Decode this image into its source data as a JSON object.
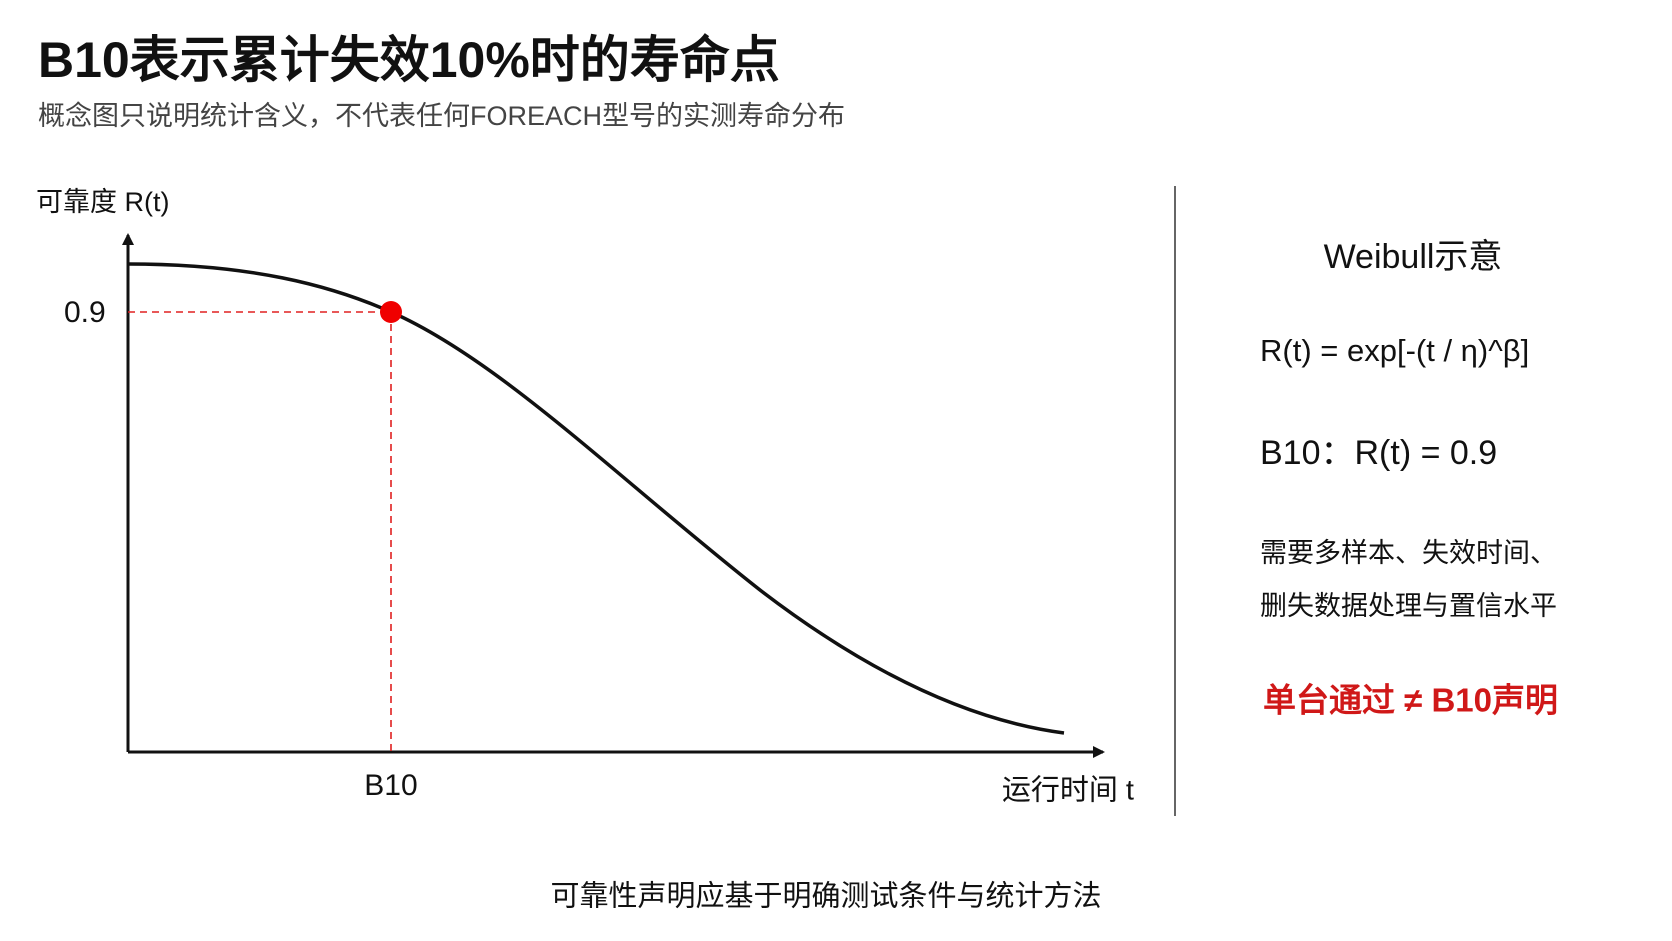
{
  "header": {
    "title": "B10表示累计失效10%时的寿命点",
    "subtitle": "概念图只说明统计含义，不代表任何FOREACH型号的实测寿命分布"
  },
  "diagram": {
    "y_axis_label": "可靠度 R(t)",
    "x_axis_label": "运行时间 t",
    "point_y_label": "0.9",
    "point_x_label": "B10"
  },
  "panel": {
    "title": "Weibull示意",
    "formula": "R(t) = exp[-(t / η)^β]",
    "definition": "B10：R(t) = 0.9",
    "note_lines": [
      "需要多样本、失效时间、",
      "删失数据处理与置信水平"
    ],
    "warning": "单台通过 ≠ B10声明"
  },
  "footer": "可靠性声明应基于明确测试条件与统计方法"
}
